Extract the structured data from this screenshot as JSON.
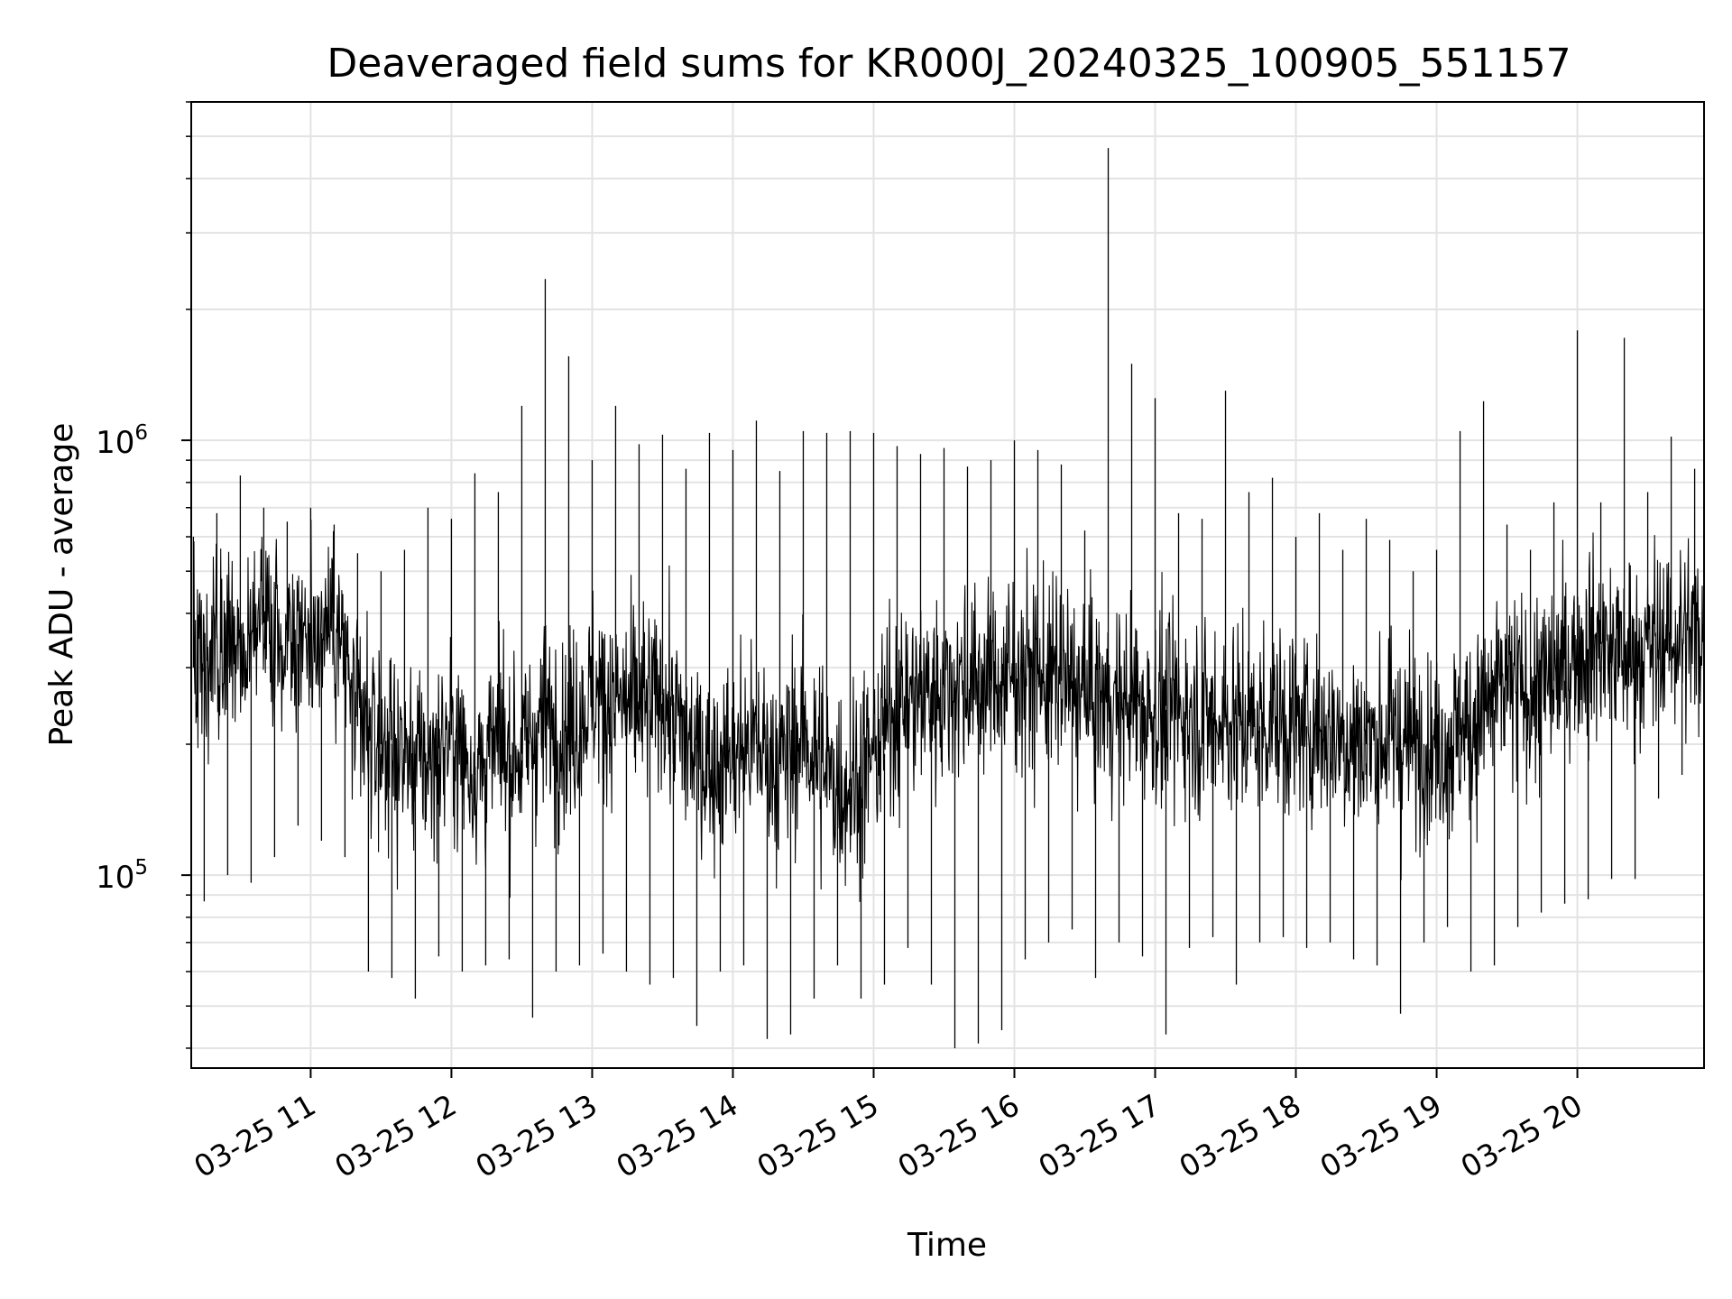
{
  "chart_data": {
    "type": "line",
    "title": "Deaveraged field sums for KR000J_20240325_100905_551157",
    "xlabel": "Time",
    "ylabel": "Peak ADU - average",
    "yscale": "log",
    "ylim": [
      36000,
      6000000
    ],
    "xlim": [
      "2024-03-25T10:09:05",
      "2024-03-25T20:54:00"
    ],
    "grid": true,
    "line_color": "#000000",
    "x_ticks": [
      "03-25 11",
      "03-25 12",
      "03-25 13",
      "03-25 14",
      "03-25 15",
      "03-25 16",
      "03-25 17",
      "03-25 18",
      "03-25 19",
      "03-25 20"
    ],
    "y_ticks": [
      {
        "base": "10",
        "exp": "5",
        "value": 100000
      },
      {
        "base": "10",
        "exp": "6",
        "value": 1000000
      }
    ],
    "x": [
      "2024-03-25T10:10",
      "2024-03-25T10:20",
      "2024-03-25T10:30",
      "2024-03-25T10:40",
      "2024-03-25T10:50",
      "2024-03-25T11:00",
      "2024-03-25T11:10",
      "2024-03-25T11:20",
      "2024-03-25T11:30",
      "2024-03-25T11:40",
      "2024-03-25T11:50",
      "2024-03-25T12:00",
      "2024-03-25T12:10",
      "2024-03-25T12:20",
      "2024-03-25T12:30",
      "2024-03-25T12:40",
      "2024-03-25T12:50",
      "2024-03-25T13:00",
      "2024-03-25T13:10",
      "2024-03-25T13:20",
      "2024-03-25T13:30",
      "2024-03-25T13:40",
      "2024-03-25T13:50",
      "2024-03-25T14:00",
      "2024-03-25T14:10",
      "2024-03-25T14:20",
      "2024-03-25T14:30",
      "2024-03-25T14:40",
      "2024-03-25T14:50",
      "2024-03-25T15:00",
      "2024-03-25T15:10",
      "2024-03-25T15:20",
      "2024-03-25T15:30",
      "2024-03-25T15:40",
      "2024-03-25T15:50",
      "2024-03-25T16:00",
      "2024-03-25T16:10",
      "2024-03-25T16:20",
      "2024-03-25T16:30",
      "2024-03-25T16:40",
      "2024-03-25T16:50",
      "2024-03-25T17:00",
      "2024-03-25T17:10",
      "2024-03-25T17:20",
      "2024-03-25T17:30",
      "2024-03-25T17:40",
      "2024-03-25T17:50",
      "2024-03-25T18:00",
      "2024-03-25T18:10",
      "2024-03-25T18:20",
      "2024-03-25T18:30",
      "2024-03-25T18:40",
      "2024-03-25T18:50",
      "2024-03-25T19:00",
      "2024-03-25T19:10",
      "2024-03-25T19:20",
      "2024-03-25T19:30",
      "2024-03-25T19:40",
      "2024-03-25T19:50",
      "2024-03-25T20:00",
      "2024-03-25T20:10",
      "2024-03-25T20:20",
      "2024-03-25T20:30",
      "2024-03-25T20:40",
      "2024-03-25T20:50"
    ],
    "series": [
      {
        "values": [
          300000,
          350000,
          320000,
          380000,
          340000,
          360000,
          400000,
          220000,
          200000,
          190000,
          180000,
          210000,
          170000,
          200000,
          190000,
          230000,
          210000,
          260000,
          250000,
          240000,
          260000,
          200000,
          180000,
          190000,
          200000,
          180000,
          210000,
          170000,
          160000,
          190000,
          250000,
          260000,
          270000,
          280000,
          280000,
          290000,
          290000,
          280000,
          260000,
          250000,
          250000,
          240000,
          240000,
          230000,
          230000,
          220000,
          230000,
          220000,
          220000,
          210000,
          200000,
          210000,
          200000,
          200000,
          210000,
          240000,
          270000,
          260000,
          280000,
          330000,
          340000,
          320000,
          330000,
          350000,
          360000
        ],
        "max": [
          600000,
          680000,
          830000,
          700000,
          650000,
          700000,
          640000,
          550000,
          500000,
          560000,
          700000,
          660000,
          840000,
          760000,
          1200000,
          2350000,
          1560000,
          900000,
          1200000,
          980000,
          1030000,
          860000,
          1040000,
          950000,
          1110000,
          850000,
          1050000,
          1040000,
          1050000,
          1040000,
          970000,
          930000,
          960000,
          870000,
          900000,
          1000000,
          950000,
          880000,
          620000,
          4700000,
          1500000,
          1250000,
          680000,
          660000,
          1300000,
          760000,
          820000,
          600000,
          680000,
          560000,
          660000,
          590000,
          500000,
          560000,
          1050000,
          1230000,
          640000,
          560000,
          720000,
          1790000,
          720000,
          1720000,
          760000,
          1020000,
          860000
        ],
        "min": [
          87000,
          100000,
          96000,
          110000,
          130000,
          120000,
          110000,
          60000,
          58000,
          52000,
          65000,
          60000,
          62000,
          64000,
          47000,
          60000,
          62000,
          66000,
          60000,
          56000,
          58000,
          45000,
          60000,
          62000,
          42000,
          43000,
          52000,
          62000,
          52000,
          56000,
          68000,
          56000,
          40000,
          41000,
          44000,
          64000,
          70000,
          75000,
          58000,
          70000,
          65000,
          43000,
          68000,
          72000,
          56000,
          70000,
          72000,
          68000,
          70000,
          64000,
          62000,
          48000,
          70000,
          76000,
          60000,
          62000,
          76000,
          82000,
          86000,
          88000,
          98000,
          98000,
          150000,
          170000,
          180000
        ]
      }
    ]
  }
}
